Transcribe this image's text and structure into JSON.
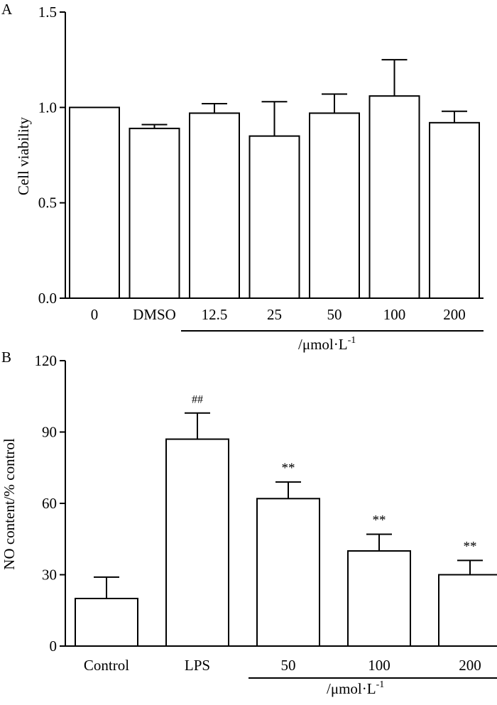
{
  "chart_data": [
    {
      "panel_label": "A",
      "type": "bar",
      "categories": [
        "0",
        "DMSO",
        "12.5",
        "25",
        "50",
        "100",
        "200"
      ],
      "values": [
        1.0,
        0.89,
        0.97,
        0.85,
        0.97,
        1.06,
        0.92
      ],
      "error_upper": [
        0.0,
        0.02,
        0.05,
        0.18,
        0.1,
        0.19,
        0.06
      ],
      "annotations": [
        "",
        "",
        "",
        "",
        "",
        "",
        ""
      ],
      "ylabel": "Cell viability",
      "yticks": [
        "0.0",
        "0.5",
        "1.0",
        "1.5"
      ],
      "ytick_values": [
        0,
        0.5,
        1.0,
        1.5
      ],
      "ylim": [
        0,
        1.5
      ],
      "unit_label": "/μmol·L",
      "unit_superscript": "-1",
      "bracket_categories": [
        2,
        6
      ]
    },
    {
      "panel_label": "B",
      "type": "bar",
      "categories": [
        "Control",
        "LPS",
        "50",
        "100",
        "200"
      ],
      "values": [
        20,
        87,
        62,
        40,
        30
      ],
      "error_upper": [
        9,
        11,
        7,
        7,
        6
      ],
      "annotations": [
        "",
        "##",
        "**",
        "**",
        "**"
      ],
      "ylabel": "NO content/% control",
      "yticks": [
        "0",
        "30",
        "60",
        "90",
        "120"
      ],
      "ytick_values": [
        0,
        30,
        60,
        90,
        120
      ],
      "ylim": [
        0,
        120
      ],
      "unit_label": "/μmol·L",
      "unit_superscript": "-1",
      "bracket_categories": [
        2,
        4
      ]
    }
  ]
}
